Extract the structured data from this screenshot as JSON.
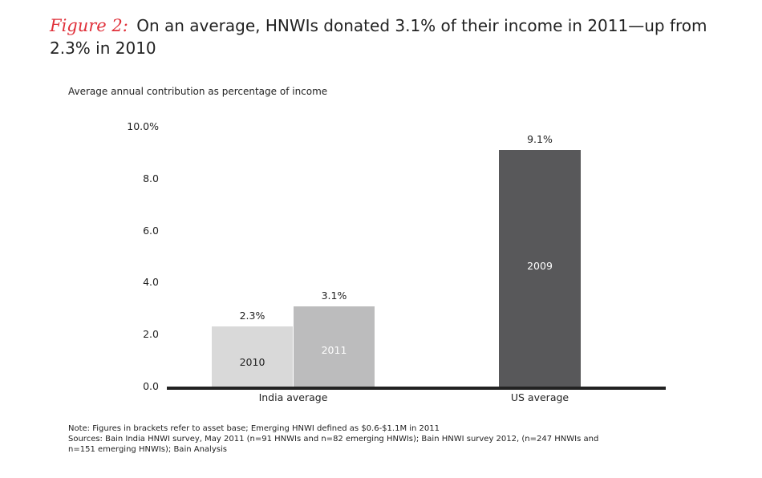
{
  "title": {
    "prefix": "Figure 2:",
    "text": "On an average, HNWIs donated 3.1% of their income in 2011—up from 2.3% in 2010"
  },
  "colors": {
    "title_prefix": "#e0303a",
    "bar_2010": "#d9d9d9",
    "bar_2011": "#bcbcbd",
    "bar_2009": "#58585a",
    "axis": "#222222"
  },
  "chart_data": {
    "type": "bar",
    "title": "Average annual contribution as percentage of income",
    "ylabel": "",
    "xlabel": "",
    "ylim": [
      0,
      10
    ],
    "y_ticks": [
      "0.0",
      "2.0",
      "4.0",
      "6.0",
      "8.0",
      "10.0%"
    ],
    "y_tick_values": [
      0,
      2,
      4,
      6,
      8,
      10
    ],
    "categories": [
      "India average",
      "US average"
    ],
    "bars": [
      {
        "group": "India average",
        "series": "2010",
        "value": 2.3,
        "label": "2.3%"
      },
      {
        "group": "India average",
        "series": "2011",
        "value": 3.1,
        "label": "3.1%"
      },
      {
        "group": "US average",
        "series": "2009",
        "value": 9.1,
        "label": "9.1%"
      }
    ]
  },
  "notes": [
    "Note: Figures in brackets refer to asset base; Emerging HNWI defined as $0.6-$1.1M in 2011",
    "Sources: Bain India HNWI survey, May 2011 (n=91 HNWIs and n=82 emerging HNWIs); Bain HNWI survey 2012, (n=247 HNWIs and",
    "n=151 emerging HNWIs); Bain Analysis"
  ]
}
